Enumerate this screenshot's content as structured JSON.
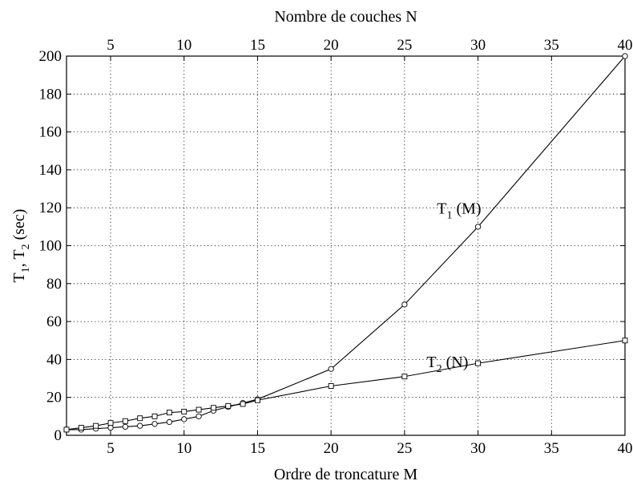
{
  "chart_data": {
    "type": "line",
    "xlabel": "Ordre de troncature M",
    "x2label": "Nombre de couches N",
    "ylabel": "T",
    "ylabel_sub1": "1",
    "ylabel_mid": ", T",
    "ylabel_sub2": "2",
    "ylabel_unit": " (sec)",
    "xlim": [
      2,
      40
    ],
    "ylim": [
      0,
      200
    ],
    "xticks": [
      5,
      10,
      15,
      20,
      25,
      30,
      35,
      40
    ],
    "x2ticks": [
      5,
      10,
      15,
      20,
      25,
      30,
      35,
      40
    ],
    "yticks": [
      0,
      20,
      40,
      60,
      80,
      100,
      120,
      140,
      160,
      180,
      200
    ],
    "grid": true,
    "series": [
      {
        "name": "T1 (M)",
        "marker": "circle",
        "x": [
          2,
          3,
          4,
          5,
          6,
          7,
          8,
          9,
          10,
          11,
          12,
          13,
          14,
          15,
          20,
          25,
          30,
          40
        ],
        "y": [
          3,
          3,
          3.5,
          4,
          4.5,
          5,
          6,
          7,
          8.5,
          10,
          13,
          15,
          17,
          19,
          35,
          69,
          110,
          200
        ]
      },
      {
        "name": "T2 (N)",
        "marker": "square",
        "x": [
          2,
          3,
          4,
          5,
          6,
          7,
          8,
          9,
          10,
          11,
          12,
          13,
          14,
          15,
          20,
          25,
          30,
          40
        ],
        "y": [
          3,
          4,
          5,
          6.5,
          7.5,
          9,
          10,
          12,
          12.5,
          13.5,
          14.5,
          15.5,
          16.5,
          18.5,
          26,
          31,
          38,
          50
        ]
      }
    ],
    "annotations": [
      {
        "label": "T",
        "sub": "1",
        "rest": " (M)",
        "x": 27.2,
        "y": 117
      },
      {
        "label": "T",
        "sub": "2",
        "rest": " (N)",
        "x": 26.5,
        "y": 36
      }
    ],
    "colors": {
      "line": "#000000",
      "grid": "#000000",
      "background": "#ffffff"
    }
  }
}
